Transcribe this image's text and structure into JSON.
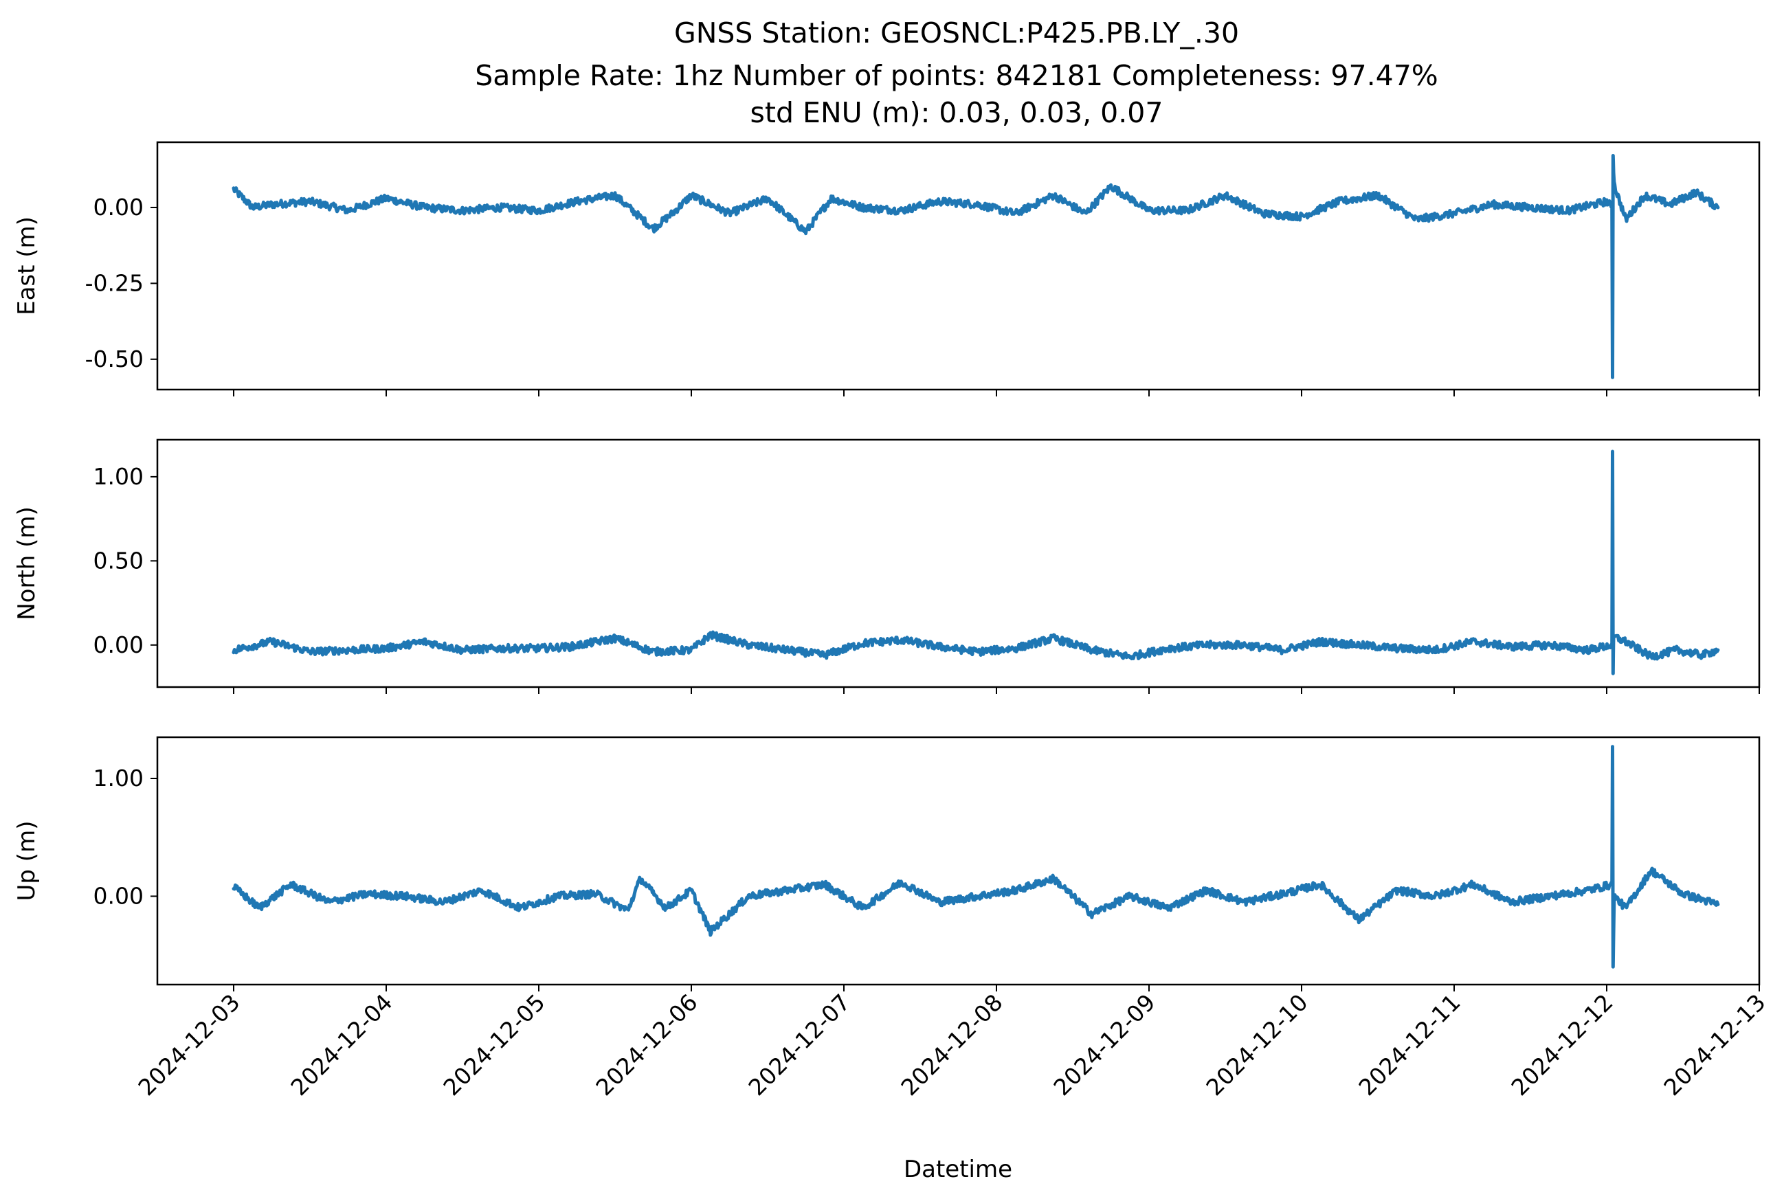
{
  "figure": {
    "title_line1": "GNSS Station: GEOSNCL:P425.PB.LY_.30",
    "title_line2": "Sample Rate: 1hz   Number of points: 842181    Completeness:  97.47%",
    "title_line3": "std ENU (m):  0.03, 0.03, 0.07",
    "xlabel": "Datetime"
  },
  "colors": {
    "series": "#1f77b4",
    "axes": "#000000",
    "background": "#ffffff"
  },
  "chart_data": [
    {
      "type": "line",
      "ylabel": "East (m)",
      "xlim": [
        "2024-12-02T12:00",
        "2024-12-13T00:00"
      ],
      "ylim": [
        -0.6,
        0.215
      ],
      "yticks": [
        0.0,
        -0.25,
        -0.5
      ],
      "yticklabels": [
        "0.00",
        "-0.25",
        "-0.50"
      ],
      "series": [
        {
          "x": [
            "2024-12-03T00:00",
            "2024-12-03T03:00",
            "2024-12-03T06:00",
            "2024-12-03T12:00",
            "2024-12-03T18:00",
            "2024-12-04T00:00",
            "2024-12-04T06:00",
            "2024-12-04T12:00",
            "2024-12-04T18:00",
            "2024-12-05T00:00",
            "2024-12-05T06:00",
            "2024-12-05T12:00",
            "2024-12-05T18:00",
            "2024-12-05T21:00",
            "2024-12-06T00:00",
            "2024-12-06T06:00",
            "2024-12-06T12:00",
            "2024-12-06T18:00",
            "2024-12-06T22:00",
            "2024-12-07T03:00",
            "2024-12-07T09:00",
            "2024-12-07T15:00",
            "2024-12-07T21:00",
            "2024-12-08T03:00",
            "2024-12-08T09:00",
            "2024-12-08T14:00",
            "2024-12-08T18:00",
            "2024-12-09T00:00",
            "2024-12-09T06:00",
            "2024-12-09T12:00",
            "2024-12-09T18:00",
            "2024-12-10T00:00",
            "2024-12-10T06:00",
            "2024-12-10T12:00",
            "2024-12-10T18:00",
            "2024-12-11T00:00",
            "2024-12-11T06:00",
            "2024-12-11T12:00",
            "2024-12-11T18:00",
            "2024-12-12T00:00",
            "2024-12-12T00:50",
            "2024-12-12T00:55",
            "2024-12-12T01:00",
            "2024-12-12T01:05",
            "2024-12-12T01:15",
            "2024-12-12T03:00",
            "2024-12-12T06:00",
            "2024-12-12T10:00",
            "2024-12-12T14:00",
            "2024-12-12T17:30"
          ],
          "y": [
            0.06,
            0.0,
            0.01,
            0.02,
            -0.01,
            0.03,
            0.0,
            -0.01,
            0.0,
            -0.01,
            0.02,
            0.04,
            -0.07,
            -0.02,
            0.04,
            -0.02,
            0.03,
            -0.08,
            0.03,
            0.0,
            -0.01,
            0.02,
            0.01,
            -0.02,
            0.04,
            -0.02,
            0.07,
            -0.01,
            -0.01,
            0.04,
            -0.02,
            -0.03,
            0.02,
            0.04,
            -0.04,
            -0.02,
            0.01,
            0.0,
            -0.01,
            0.02,
            0.0,
            -0.56,
            0.18,
            0.12,
            0.07,
            -0.04,
            0.04,
            0.01,
            0.05,
            0.0
          ]
        }
      ]
    },
    {
      "type": "line",
      "ylabel": "North (m)",
      "xlim": [
        "2024-12-02T12:00",
        "2024-12-13T00:00"
      ],
      "ylim": [
        -0.25,
        1.22
      ],
      "yticks": [
        1.0,
        0.5,
        0.0
      ],
      "yticklabels": [
        "1.00",
        "0.50",
        "0.00"
      ],
      "series": [
        {
          "x": [
            "2024-12-03T00:00",
            "2024-12-03T06:00",
            "2024-12-03T12:00",
            "2024-12-03T18:00",
            "2024-12-04T00:00",
            "2024-12-04T06:00",
            "2024-12-04T12:00",
            "2024-12-04T18:00",
            "2024-12-05T00:00",
            "2024-12-05T05:00",
            "2024-12-05T12:00",
            "2024-12-05T18:00",
            "2024-12-06T00:00",
            "2024-12-06T03:00",
            "2024-12-06T09:00",
            "2024-12-06T15:00",
            "2024-12-06T21:00",
            "2024-12-07T03:00",
            "2024-12-07T09:00",
            "2024-12-07T15:00",
            "2024-12-07T21:00",
            "2024-12-08T03:00",
            "2024-12-08T09:00",
            "2024-12-08T15:00",
            "2024-12-08T21:00",
            "2024-12-09T03:00",
            "2024-12-09T09:00",
            "2024-12-09T15:00",
            "2024-12-09T21:00",
            "2024-12-10T03:00",
            "2024-12-10T09:00",
            "2024-12-10T15:00",
            "2024-12-10T21:00",
            "2024-12-11T03:00",
            "2024-12-11T09:00",
            "2024-12-11T15:00",
            "2024-12-11T21:00",
            "2024-12-12T00:50",
            "2024-12-12T00:55",
            "2024-12-12T01:00",
            "2024-12-12T01:05",
            "2024-12-12T03:00",
            "2024-12-12T07:00",
            "2024-12-12T11:00",
            "2024-12-12T15:00",
            "2024-12-12T17:30"
          ],
          "y": [
            -0.03,
            0.02,
            -0.04,
            -0.03,
            -0.02,
            0.02,
            -0.03,
            -0.02,
            -0.02,
            -0.01,
            0.04,
            -0.04,
            -0.03,
            0.06,
            0.0,
            -0.03,
            -0.06,
            0.01,
            0.03,
            -0.01,
            -0.04,
            -0.02,
            0.04,
            -0.03,
            -0.07,
            -0.02,
            0.0,
            0.0,
            -0.03,
            0.02,
            0.0,
            -0.02,
            -0.03,
            0.02,
            -0.01,
            0.0,
            -0.03,
            0.0,
            1.15,
            -0.19,
            0.05,
            0.02,
            -0.07,
            -0.03,
            -0.06,
            -0.03
          ]
        }
      ]
    },
    {
      "type": "line",
      "ylabel": "Up (m)",
      "xlim": [
        "2024-12-02T12:00",
        "2024-12-13T00:00"
      ],
      "ylim": [
        -0.75,
        1.35
      ],
      "yticks": [
        1.0,
        0.0
      ],
      "yticklabels": [
        "1.00",
        "0.00"
      ],
      "series": [
        {
          "x": [
            "2024-12-03T00:00",
            "2024-12-03T04:00",
            "2024-12-03T09:00",
            "2024-12-03T15:00",
            "2024-12-03T21:00",
            "2024-12-04T03:00",
            "2024-12-04T09:00",
            "2024-12-04T15:00",
            "2024-12-04T21:00",
            "2024-12-05T03:00",
            "2024-12-05T09:00",
            "2024-12-05T14:00",
            "2024-12-05T16:00",
            "2024-12-05T20:00",
            "2024-12-06T00:00",
            "2024-12-06T03:00",
            "2024-12-06T09:00",
            "2024-12-06T15:00",
            "2024-12-06T21:00",
            "2024-12-07T03:00",
            "2024-12-07T09:00",
            "2024-12-07T15:00",
            "2024-12-07T21:00",
            "2024-12-08T03:00",
            "2024-12-08T09:00",
            "2024-12-08T15:00",
            "2024-12-08T21:00",
            "2024-12-09T03:00",
            "2024-12-09T09:00",
            "2024-12-09T15:00",
            "2024-12-09T21:00",
            "2024-12-10T03:00",
            "2024-12-10T09:00",
            "2024-12-10T15:00",
            "2024-12-10T21:00",
            "2024-12-11T03:00",
            "2024-12-11T09:00",
            "2024-12-11T15:00",
            "2024-12-11T21:00",
            "2024-12-12T00:50",
            "2024-12-12T00:55",
            "2024-12-12T01:00",
            "2024-12-12T01:10",
            "2024-12-12T03:00",
            "2024-12-12T07:00",
            "2024-12-12T12:00",
            "2024-12-12T17:30"
          ],
          "y": [
            0.08,
            -0.1,
            0.1,
            -0.05,
            0.02,
            0.0,
            -0.05,
            0.05,
            -0.1,
            0.0,
            0.02,
            -0.12,
            0.15,
            -0.1,
            0.05,
            -0.3,
            0.0,
            0.05,
            0.1,
            -0.1,
            0.12,
            -0.05,
            0.0,
            0.05,
            0.15,
            -0.15,
            0.0,
            -0.1,
            0.05,
            -0.05,
            0.02,
            0.1,
            -0.2,
            0.05,
            0.0,
            0.1,
            -0.05,
            0.0,
            0.05,
            0.1,
            1.27,
            -0.62,
            0.0,
            -0.1,
            0.22,
            0.02,
            -0.07
          ]
        }
      ]
    }
  ],
  "x_axis": {
    "ticks": [
      "2024-12-03",
      "2024-12-04",
      "2024-12-05",
      "2024-12-06",
      "2024-12-07",
      "2024-12-08",
      "2024-12-09",
      "2024-12-10",
      "2024-12-11",
      "2024-12-12",
      "2024-12-13"
    ]
  }
}
